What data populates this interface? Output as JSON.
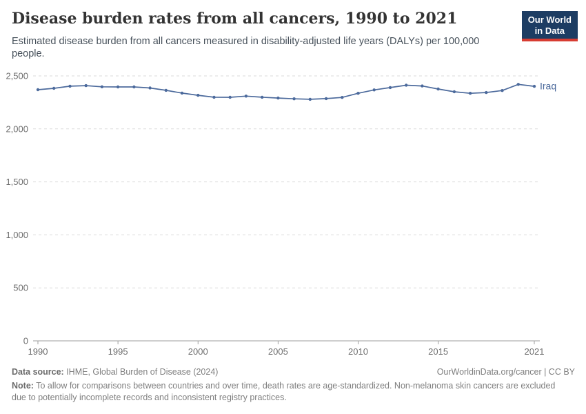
{
  "header": {
    "title": "Disease burden rates from all cancers, 1990 to 2021",
    "subtitle": "Estimated disease burden from all cancers measured in disability-adjusted life years (DALYs) per 100,000 people."
  },
  "logo": {
    "line1": "Our World",
    "line2": "in Data",
    "bg_color": "#1d3d63",
    "accent_color": "#d73c32"
  },
  "chart_data": {
    "type": "line",
    "title": "Disease burden rates from all cancers, 1990 to 2021",
    "subtitle": "Estimated disease burden from all cancers measured in disability-adjusted life years (DALYs) per 100,000 people.",
    "xlabel": "",
    "ylabel": "",
    "xlim": [
      1990,
      2021
    ],
    "ylim": [
      0,
      2500
    ],
    "grid": "horizontal-dashed",
    "legend_position": "end-of-line",
    "x": [
      1990,
      1991,
      1992,
      1993,
      1994,
      1995,
      1996,
      1997,
      1998,
      1999,
      2000,
      2001,
      2002,
      2003,
      2004,
      2005,
      2006,
      2007,
      2008,
      2009,
      2010,
      2011,
      2012,
      2013,
      2014,
      2015,
      2016,
      2017,
      2018,
      2019,
      2020,
      2021
    ],
    "series": [
      {
        "name": "Iraq",
        "color": "#4c6a9c",
        "values": [
          2370,
          2383,
          2403,
          2408,
          2397,
          2396,
          2396,
          2386,
          2364,
          2338,
          2317,
          2299,
          2298,
          2309,
          2299,
          2291,
          2284,
          2279,
          2286,
          2297,
          2336,
          2368,
          2390,
          2412,
          2405,
          2376,
          2350,
          2336,
          2343,
          2362,
          2420,
          2402
        ]
      }
    ],
    "yticks": [
      0,
      500,
      1000,
      1500,
      2000,
      2500
    ],
    "ytick_labels": [
      "0",
      "500",
      "1,000",
      "1,500",
      "2,000",
      "2,500"
    ],
    "xticks": [
      1990,
      1995,
      2000,
      2005,
      2010,
      2015,
      2021
    ],
    "xtick_labels": [
      "1990",
      "1995",
      "2000",
      "2005",
      "2010",
      "2015",
      "2021"
    ],
    "tick_color": "#6e6e6e",
    "grid_color": "#dadada",
    "axis_color": "#9e9e9e"
  },
  "footer": {
    "datasource_label": "Data source:",
    "datasource_text": " IHME, Global Burden of Disease (2024)",
    "link_text": "OurWorldinData.org/cancer | CC BY",
    "note_label": "Note:",
    "note_text": " To allow for comparisons between countries and over time, death rates are age-standardized. Non-melanoma skin cancers are excluded due to potentially incomplete records and inconsistent registry practices."
  }
}
